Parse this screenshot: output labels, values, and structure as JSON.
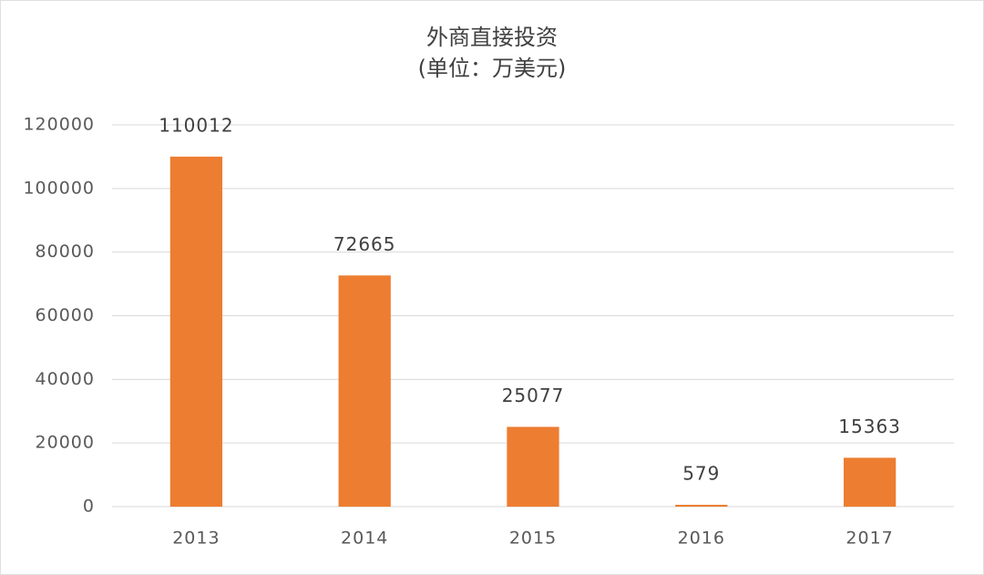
{
  "chart_data": {
    "type": "bar",
    "title": "外商直接投资",
    "subtitle": "(单位：万美元)",
    "categories": [
      "2013",
      "2014",
      "2015",
      "2016",
      "2017"
    ],
    "values": [
      110012,
      72665,
      25077,
      579,
      15363
    ],
    "color": "#ed7d31",
    "ylim": [
      0,
      120000
    ],
    "yticks": [
      0,
      20000,
      40000,
      60000,
      80000,
      100000,
      120000
    ],
    "grid": true
  }
}
